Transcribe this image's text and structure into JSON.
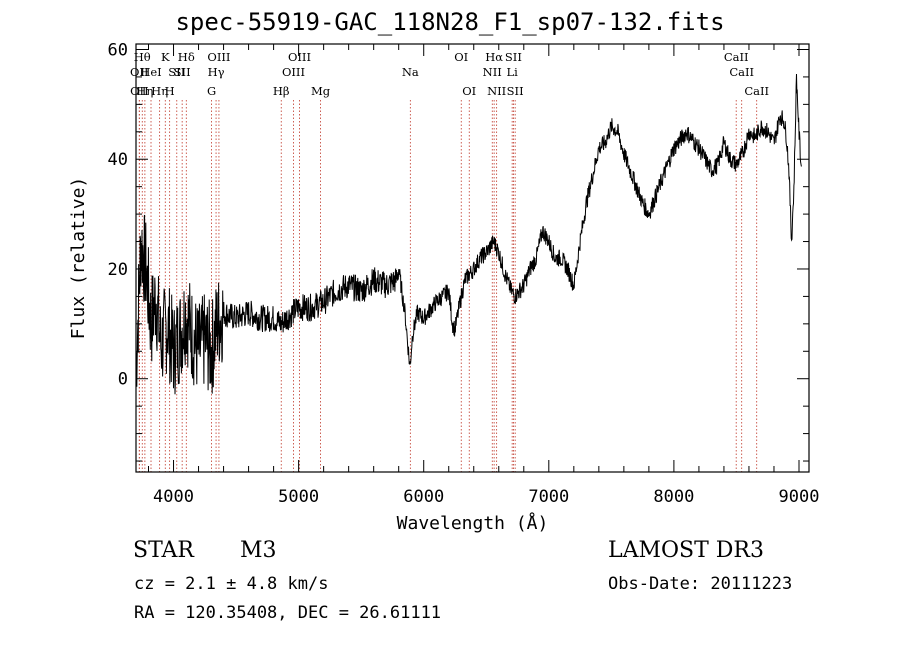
{
  "chart_data": {
    "type": "line",
    "title": "spec-55919-GAC_118N28_F1_sp07-132.fits",
    "xlabel": "Wavelength (Å)",
    "ylabel": "Flux (relative)",
    "xlim": [
      3700,
      9080
    ],
    "ylim": [
      -17,
      61
    ],
    "xticks": [
      4000,
      5000,
      6000,
      7000,
      8000,
      9000
    ],
    "yticks": [
      0,
      20,
      40,
      60
    ],
    "grid": false,
    "series": [
      {
        "name": "spectrum",
        "x": [
          3700,
          3740,
          3780,
          3820,
          3860,
          3900,
          3950,
          4000,
          4050,
          4100,
          4150,
          4200,
          4250,
          4300,
          4350,
          4400,
          4500,
          4600,
          4700,
          4800,
          4860,
          4900,
          5000,
          5100,
          5200,
          5300,
          5400,
          5500,
          5600,
          5700,
          5780,
          5800,
          5850,
          5890,
          5910,
          5950,
          6000,
          6100,
          6200,
          6230,
          6250,
          6300,
          6330,
          6400,
          6450,
          6500,
          6560,
          6600,
          6650,
          6700,
          6730,
          6800,
          6850,
          6900,
          6950,
          7000,
          7050,
          7100,
          7150,
          7200,
          7250,
          7300,
          7350,
          7400,
          7450,
          7500,
          7550,
          7600,
          7650,
          7700,
          7750,
          7800,
          7850,
          7900,
          8000,
          8100,
          8200,
          8300,
          8350,
          8400,
          8450,
          8500,
          8550,
          8600,
          8650,
          8700,
          8750,
          8800,
          8850,
          8880,
          8900,
          8920,
          8940,
          8960,
          8980,
          9000,
          9020
        ],
        "y": [
          2,
          25,
          20,
          10,
          15,
          6,
          10,
          5,
          8,
          12,
          8,
          5,
          7,
          5,
          10,
          12,
          11,
          12,
          11,
          11,
          10,
          11,
          13,
          13,
          14,
          16,
          17,
          16,
          18,
          17,
          18,
          20,
          12,
          2,
          8,
          12,
          11,
          14,
          16,
          10,
          9,
          15,
          18,
          20,
          22,
          23,
          25,
          23,
          19,
          16,
          15,
          17,
          20,
          22,
          27,
          25,
          22,
          22,
          20,
          17,
          25,
          32,
          37,
          42,
          43,
          46,
          45,
          41,
          38,
          35,
          32,
          30,
          33,
          36,
          42,
          45,
          42,
          38,
          39,
          43,
          40,
          39,
          41,
          45,
          44,
          46,
          45,
          43,
          48,
          47,
          44,
          38,
          25,
          35,
          55,
          45,
          38
        ]
      }
    ],
    "line_markers": [
      {
        "wl": 3726,
        "label": "OII",
        "row": 2
      },
      {
        "wl": 3727,
        "label": "OII",
        "row": 3
      },
      {
        "wl": 3750,
        "label": "Hθ",
        "row": 1
      },
      {
        "wl": 3771,
        "label": "Hη",
        "row": 3
      },
      {
        "wl": 3820,
        "label": "HeI",
        "row": 2
      },
      {
        "wl": 3889,
        "label": "Hη",
        "row": 3
      },
      {
        "wl": 3934,
        "label": "K",
        "row": 1
      },
      {
        "wl": 3969,
        "label": "H",
        "row": 3
      },
      {
        "wl": 4026,
        "label": "SII",
        "row": 2
      },
      {
        "wl": 4102,
        "label": "Hδ",
        "row": 1
      },
      {
        "wl": 4069,
        "label": "SII",
        "row": 2
      },
      {
        "wl": 4304,
        "label": "G",
        "row": 3
      },
      {
        "wl": 4340,
        "label": "Hγ",
        "row": 2
      },
      {
        "wl": 4363,
        "label": "OIII",
        "row": 1
      },
      {
        "wl": 4861,
        "label": "Hβ",
        "row": 3
      },
      {
        "wl": 4959,
        "label": "OIII",
        "row": 2
      },
      {
        "wl": 5007,
        "label": "OIII",
        "row": 1
      },
      {
        "wl": 5175,
        "label": "Mg",
        "row": 3
      },
      {
        "wl": 5893,
        "label": "Na",
        "row": 2
      },
      {
        "wl": 6300,
        "label": "OI",
        "row": 1
      },
      {
        "wl": 6364,
        "label": "OI",
        "row": 3
      },
      {
        "wl": 6548,
        "label": "NII",
        "row": 2
      },
      {
        "wl": 6563,
        "label": "Hα",
        "row": 1
      },
      {
        "wl": 6583,
        "label": "NII",
        "row": 3
      },
      {
        "wl": 6707,
        "label": "Li",
        "row": 2
      },
      {
        "wl": 6717,
        "label": "SII",
        "row": 1
      },
      {
        "wl": 6731,
        "label": "SII",
        "row": 3
      },
      {
        "wl": 8498,
        "label": "CaII",
        "row": 1
      },
      {
        "wl": 8542,
        "label": "CaII",
        "row": 2
      },
      {
        "wl": 8662,
        "label": "CaII",
        "row": 3
      }
    ]
  },
  "info": {
    "class": "STAR",
    "subclass": "M3",
    "cz": "cz = 2.1 ± 4.8 km/s",
    "radec": "RA = 120.35408, DEC =  26.61111",
    "survey": "LAMOST DR3",
    "obs_date": "Obs-Date: 20111223"
  },
  "colors": {
    "line": "#000000",
    "marker": "#c0392b"
  }
}
